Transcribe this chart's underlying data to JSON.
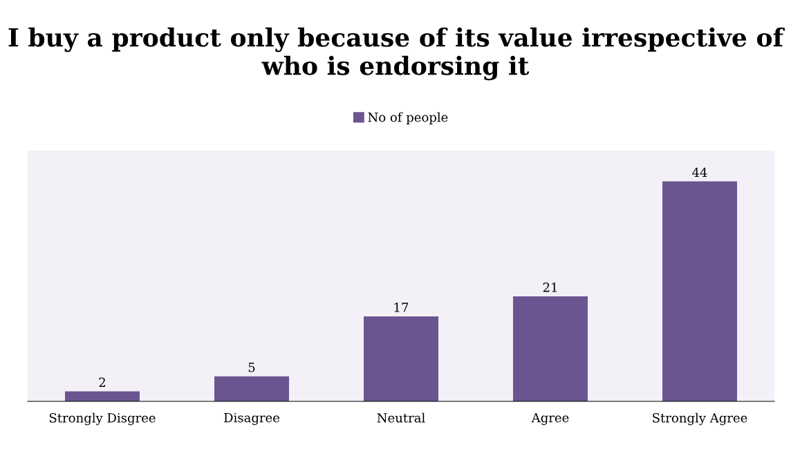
{
  "chart_data": {
    "type": "bar",
    "title": "I buy a product only because of its value irrespective of who is endorsing it",
    "categories": [
      "Strongly Disgree",
      "Disagree",
      "Neutral",
      "Agree",
      "Strongly Agree"
    ],
    "series": [
      {
        "name": "No of people",
        "color": "#6b5590",
        "values": [
          2,
          5,
          17,
          21,
          44
        ]
      }
    ],
    "data_labels": true,
    "legend": "top",
    "grid": false,
    "tick_labels": "x"
  }
}
